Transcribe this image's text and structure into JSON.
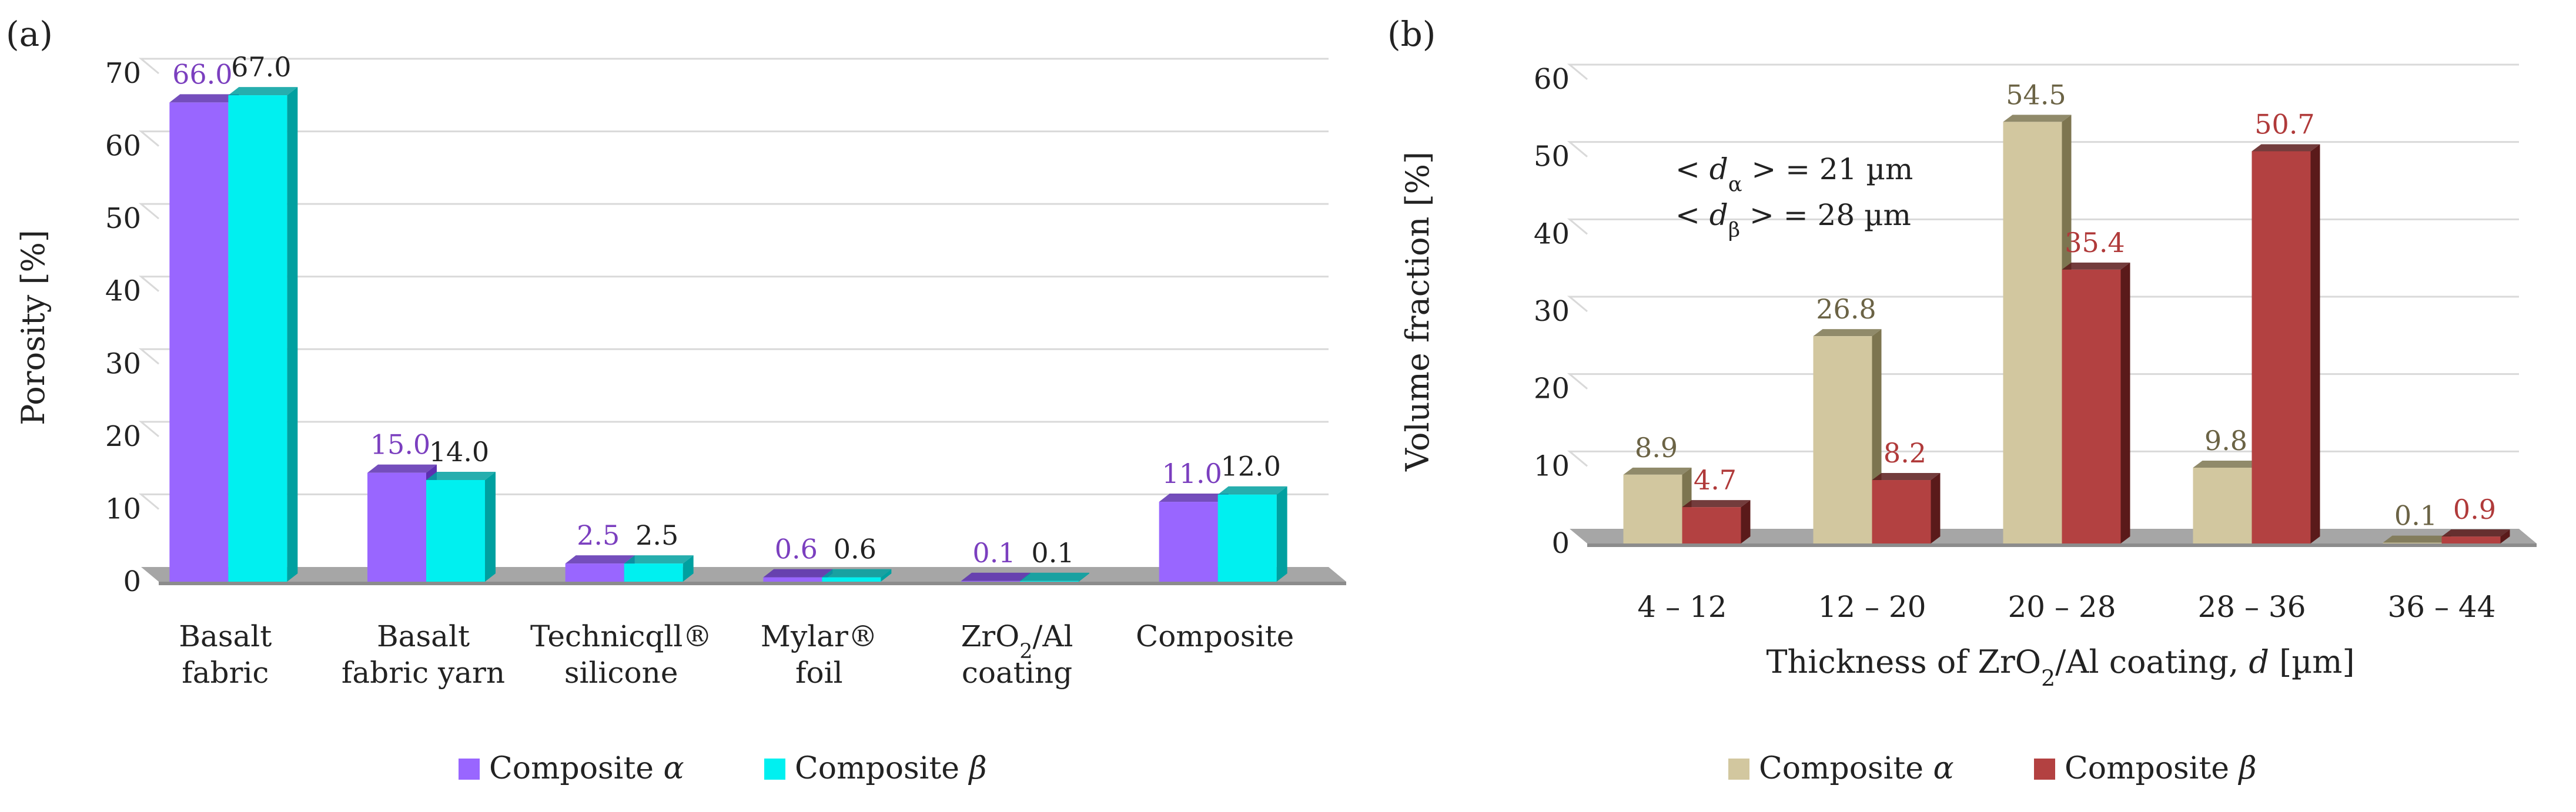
{
  "chart_data": [
    {
      "panel_label": "(a)",
      "type": "bar",
      "ylabel": "Porosity [%]",
      "xlabel": "",
      "ylim": [
        0,
        70
      ],
      "yticks": [
        0,
        10,
        20,
        30,
        40,
        50,
        60,
        70
      ],
      "categories": [
        [
          "Basalt",
          "fabric"
        ],
        [
          "Basalt",
          "fabric yarn"
        ],
        [
          "Technicqll®",
          "silicone"
        ],
        [
          "Mylar®",
          "foil"
        ],
        [
          "ZrO₂/Al",
          "coating"
        ],
        [
          "Composite"
        ]
      ],
      "series": [
        {
          "name": "Composite α",
          "values": [
            66.0,
            15.0,
            2.5,
            0.6,
            0.1,
            11.0
          ],
          "labels": [
            "66.0",
            "15.0",
            "2.5",
            "0.6",
            "0.1",
            "11.0"
          ],
          "color": "#9966ff",
          "side_color": "#5c2fb0",
          "label_color": "#7b3fbf"
        },
        {
          "name": "Composite β",
          "values": [
            67.0,
            14.0,
            2.5,
            0.6,
            0.1,
            12.0
          ],
          "labels": [
            "67.0",
            "14.0",
            "2.5",
            "0.6",
            "0.1",
            "12.0"
          ],
          "color": "#00f0f0",
          "side_color": "#00a0a0",
          "label_color": "#222222"
        }
      ],
      "grid": true,
      "legend": "bottom"
    },
    {
      "panel_label": "(b)",
      "type": "bar",
      "ylabel": "Volume fraction [%]",
      "xlabel": "Thickness of ZrO₂/Al coating, d [µm]",
      "ylim": [
        0,
        60
      ],
      "yticks": [
        0,
        10,
        20,
        30,
        40,
        50,
        60
      ],
      "categories": [
        "4 – 12",
        "12 – 20",
        "20 – 28",
        "28 – 36",
        "36 – 44"
      ],
      "series": [
        {
          "name": "Composite α",
          "values": [
            8.9,
            26.8,
            54.5,
            9.8,
            0.1
          ],
          "labels": [
            "8.9",
            "26.8",
            "54.5",
            "9.8",
            "0.1"
          ],
          "color": "#d2c79f",
          "side_color": "#7d7550",
          "label_color": "#6b6345"
        },
        {
          "name": "Composite β",
          "values": [
            4.7,
            8.2,
            35.4,
            50.7,
            0.9
          ],
          "labels": [
            "4.7",
            "8.2",
            "35.4",
            "50.7",
            "0.9"
          ],
          "color": "#b34141",
          "side_color": "#5a1a1a",
          "label_color": "#b03a3a"
        }
      ],
      "annotations": [
        "< dα > = 21 µm",
        "< dβ > = 28 µm"
      ],
      "grid": true,
      "legend": "bottom"
    }
  ]
}
